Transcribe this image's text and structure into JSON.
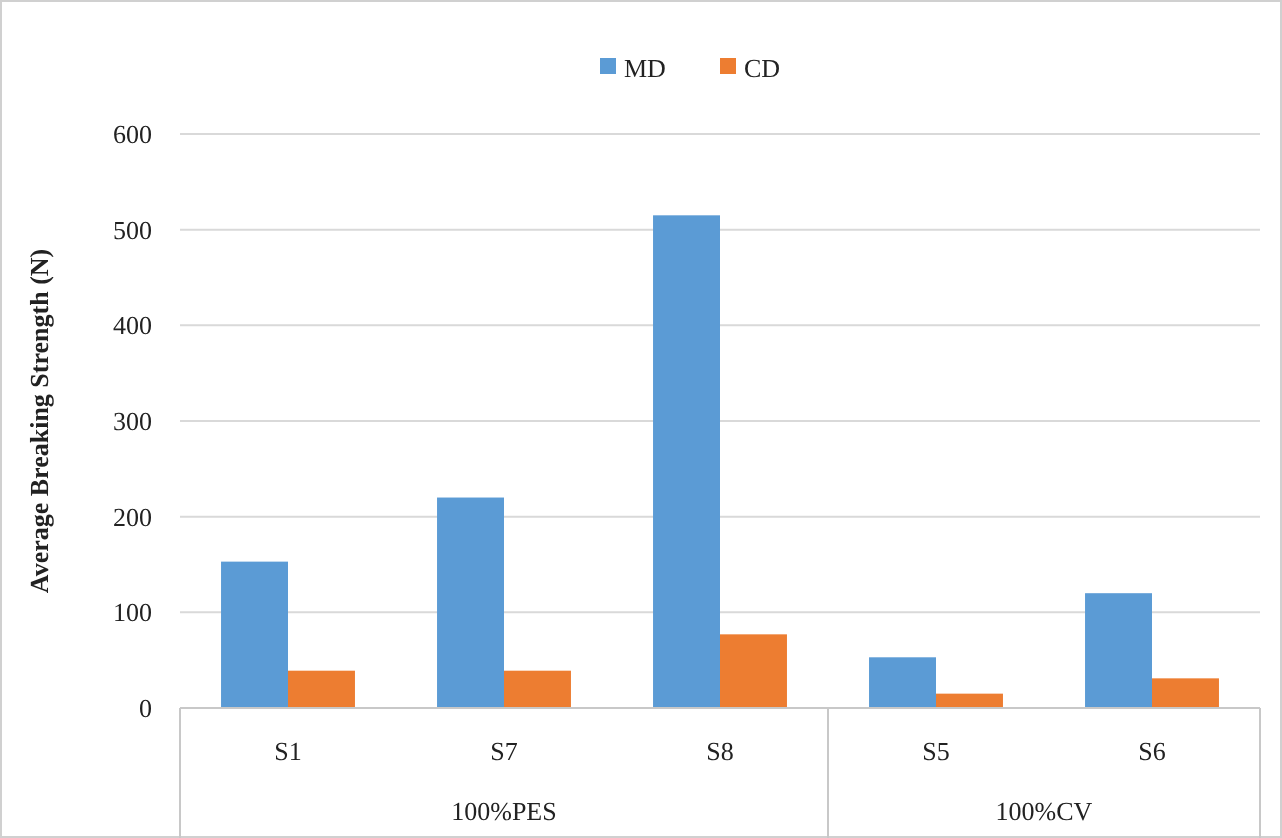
{
  "chart_data": {
    "type": "bar",
    "ylabel": "Average Breaking Strength (N)",
    "categories": [
      "S1",
      "S7",
      "S8",
      "S5",
      "S6"
    ],
    "series": [
      {
        "name": "MD",
        "color": "#5b9bd5",
        "values": [
          153,
          220,
          515,
          53,
          120
        ]
      },
      {
        "name": "CD",
        "color": "#ed7d31",
        "values": [
          39,
          39,
          77,
          15,
          31
        ]
      }
    ],
    "ylim": [
      0,
      600
    ],
    "yticks": [
      0,
      100,
      200,
      300,
      400,
      500,
      600
    ],
    "grid": "y",
    "legend": "top",
    "annotations": [
      "100%PES",
      "100%CV"
    ]
  }
}
